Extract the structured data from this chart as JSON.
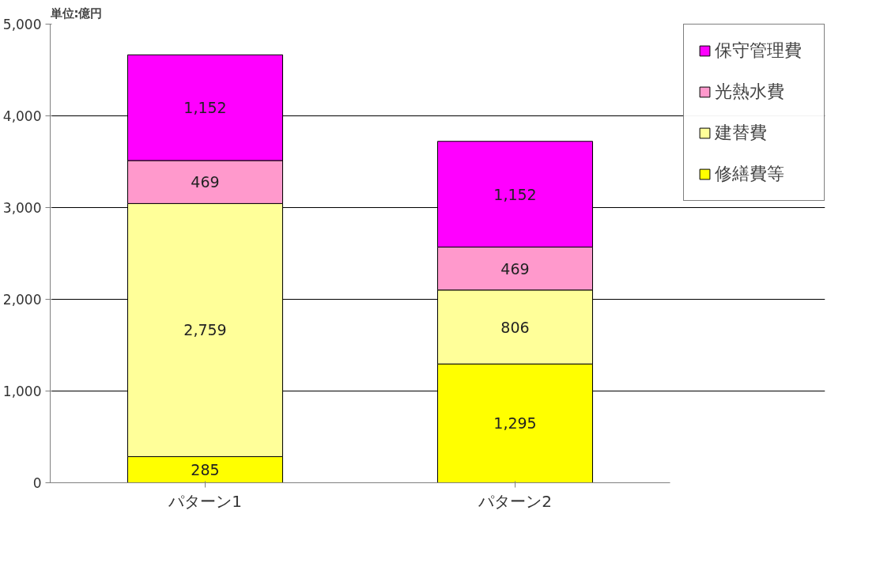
{
  "chart_data": {
    "type": "bar",
    "stacked": true,
    "ylabel": "単位:億円",
    "categories": [
      "パターン1",
      "パターン2"
    ],
    "series": [
      {
        "name": "修繕費等",
        "color": "#ffff00",
        "values": [
          285,
          1295
        ],
        "value_labels": [
          "285",
          "1,295"
        ]
      },
      {
        "name": "建替費",
        "color": "#ffff99",
        "values": [
          2759,
          806
        ],
        "value_labels": [
          "2,759",
          "806"
        ]
      },
      {
        "name": "光熱水費",
        "color": "#ff99cc",
        "values": [
          469,
          469
        ],
        "value_labels": [
          "469",
          "469"
        ]
      },
      {
        "name": "保守管理費",
        "color": "#ff00ff",
        "values": [
          1152,
          1152
        ],
        "value_labels": [
          "1,152",
          "1,152"
        ]
      }
    ],
    "ylim": [
      0,
      5000
    ],
    "yticks": [
      0,
      {
        "value": 1000,
        "label": "1,000"
      },
      {
        "value": 2000,
        "label": "2,000"
      },
      {
        "value": 3000,
        "label": "3,000"
      },
      {
        "value": 4000,
        "label": "4,000"
      },
      {
        "value": 5000,
        "label": "5,000"
      }
    ],
    "grid": "y",
    "legend": "top right"
  }
}
